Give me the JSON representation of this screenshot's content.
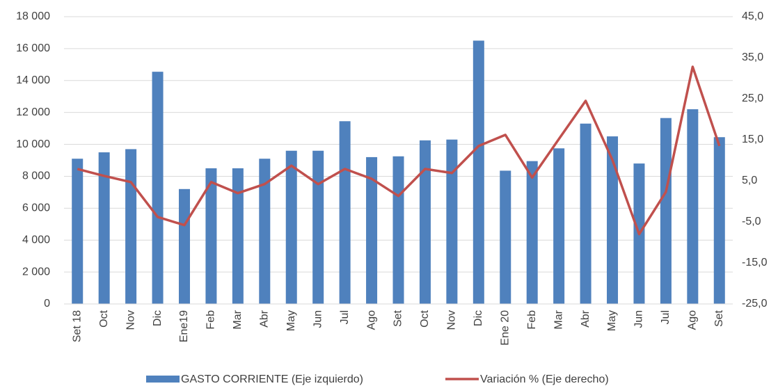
{
  "chart_data": {
    "type": "bar_line",
    "categories": [
      "Set 18",
      "Oct",
      "Nov",
      "Dic",
      "Ene19",
      "Feb",
      "Mar",
      "Abr",
      "May",
      "Jun",
      "Jul",
      "Ago",
      "Set",
      "Oct",
      "Nov",
      "Dic",
      "Ene 20",
      "Feb",
      "Mar",
      "Abr",
      "May",
      "Jun",
      "Jul",
      "Ago",
      "Set"
    ],
    "series": [
      {
        "name": "GASTO CORRIENTE (Eje izquierdo)",
        "color": "#4f81bd",
        "kind": "bar",
        "axis": "y",
        "values": [
          9100,
          9500,
          9700,
          14550,
          7200,
          8500,
          8500,
          9100,
          9600,
          9600,
          11450,
          9200,
          9250,
          10250,
          10300,
          16500,
          8350,
          8950,
          9750,
          11300,
          10500,
          8800,
          11650,
          12200,
          10450
        ]
      },
      {
        "name": "Variación % (Eje derecho)",
        "color": "#c0504d",
        "kind": "line",
        "axis": "y2",
        "values": [
          7.9,
          6.2,
          4.7,
          -3.8,
          -5.8,
          4.7,
          2.0,
          4.2,
          8.7,
          4.2,
          7.9,
          5.5,
          1.3,
          7.9,
          6.9,
          13.5,
          16.2,
          5.8,
          15.2,
          24.5,
          10.1,
          -8.0,
          2.3,
          32.8,
          13.5
        ]
      }
    ],
    "ylim": [
      0,
      18000
    ],
    "yticks": [
      0,
      {
        "value": 2000,
        "label": "2 000"
      },
      {
        "value": 4000,
        "label": "4 000"
      },
      {
        "value": 6000,
        "label": "6 000"
      },
      {
        "value": 8000,
        "label": "8 000"
      },
      {
        "value": 10000,
        "label": "10 000"
      },
      {
        "value": 12000,
        "label": "12 000"
      },
      {
        "value": 14000,
        "label": "14 000"
      },
      {
        "value": 16000,
        "label": "16 000"
      },
      {
        "value": 18000,
        "label": "18 000"
      }
    ],
    "y2lim": [
      -25,
      45
    ],
    "y2ticks": [
      {
        "value": -25,
        "label": "-25,0"
      },
      {
        "value": -15,
        "label": "-15,0"
      },
      {
        "value": -5,
        "label": "-5,0"
      },
      {
        "value": 5,
        "label": "5,0"
      },
      {
        "value": 15,
        "label": "15,0"
      },
      {
        "value": 25,
        "label": "25,0"
      },
      {
        "value": 35,
        "label": "35,0"
      },
      {
        "value": 45,
        "label": "45,0"
      }
    ],
    "grid": true,
    "legend": "bottom"
  }
}
